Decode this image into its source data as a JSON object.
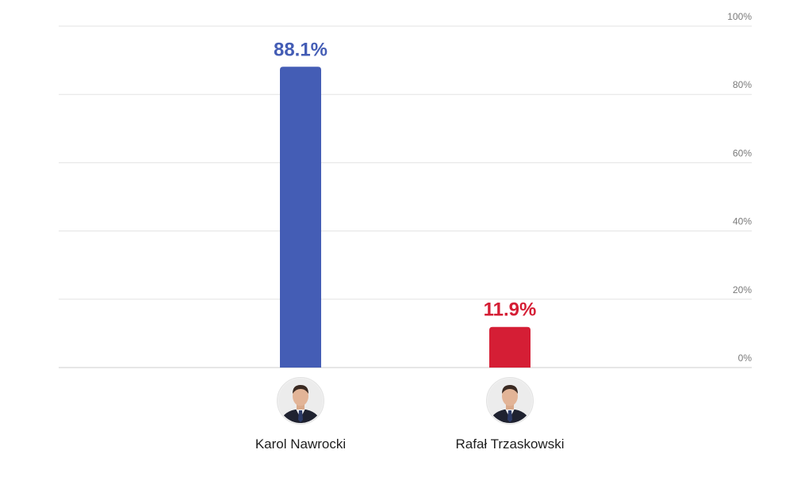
{
  "chart_data": {
    "type": "bar",
    "categories": [
      "Karol Nawrocki",
      "Rafał Trzaskowski"
    ],
    "values": [
      88.1,
      11.9
    ],
    "value_labels": [
      "88.1%",
      "11.9%"
    ],
    "colors": [
      "#445db5",
      "#d51e35"
    ],
    "ylim": [
      0,
      100
    ],
    "yticks": [
      0,
      20,
      40,
      60,
      80,
      100
    ],
    "ytick_labels": [
      "0%",
      "20%",
      "40%",
      "60%",
      "80%",
      "100%"
    ],
    "y_axis_side": "right",
    "grid": true,
    "title": "",
    "xlabel": "",
    "ylabel": "",
    "category_icons": [
      "candidate-photo",
      "candidate-photo"
    ]
  }
}
